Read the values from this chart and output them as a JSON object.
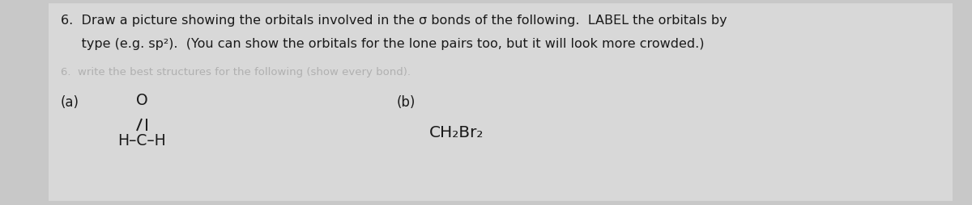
{
  "background_color": "#c8c8c8",
  "inner_bg": "#d4d4d4",
  "text_color": "#1a1a1a",
  "faded_color": "#b0b0b0",
  "title_line1": "6.  Draw a picture showing the orbitals involved in the σ bonds of the following.  LABEL the orbitals by",
  "title_line2": "     type (e.g. sp²).  (You can show the orbitals for the lone pairs too, but it will look more crowded.)",
  "faded_line": "6.  write the best structures for the following (show every bond).",
  "label_a": "(a)",
  "label_b": "(b)",
  "molecule_a_top": "O",
  "molecule_a_main": "H–C–H",
  "molecule_b": "CH₂Br₂",
  "font_family": "DejaVu Sans",
  "title_fontsize": 11.5,
  "label_fontsize": 12.0,
  "molecule_fontsize": 13.5,
  "faded_fontsize": 9.5
}
